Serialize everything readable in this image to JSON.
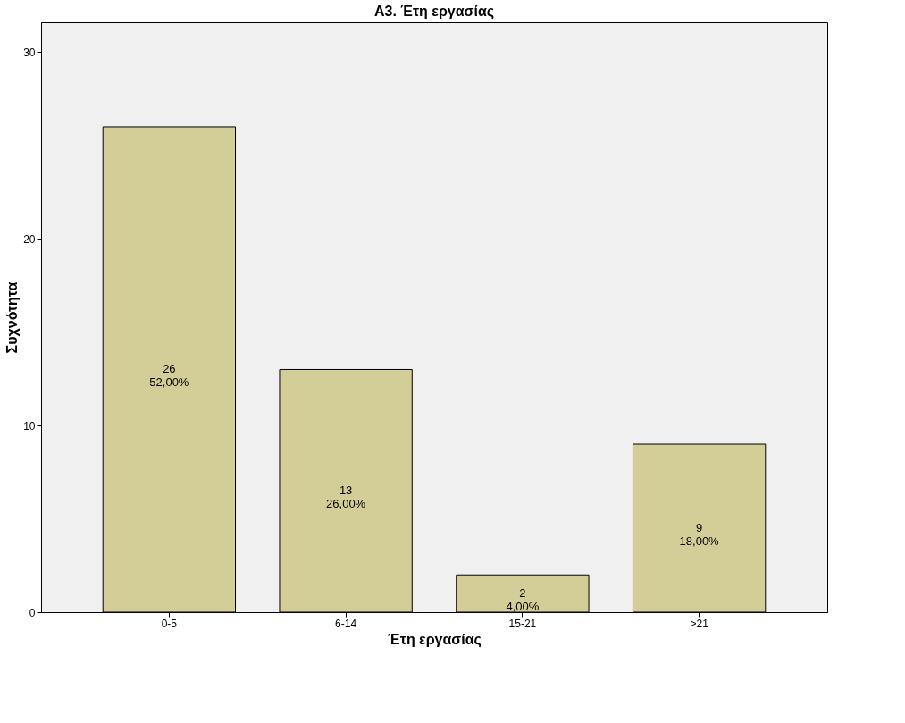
{
  "chart_data": {
    "type": "bar",
    "title": "A3. Έτη εργασίας",
    "xlabel": "Έτη εργασίας",
    "ylabel": "Συχνότητα",
    "categories": [
      "0-5",
      "6-14",
      "15-21",
      ">21"
    ],
    "values": [
      26,
      13,
      2,
      9
    ],
    "value_labels": [
      "26\n52,00%",
      "13\n26,00%",
      "2\n4,00%",
      "9\n18,00%"
    ],
    "color": "#d3ce97",
    "ylim": [
      0,
      31.6
    ],
    "yticks": [
      0,
      10,
      20,
      30
    ],
    "grid": false
  }
}
